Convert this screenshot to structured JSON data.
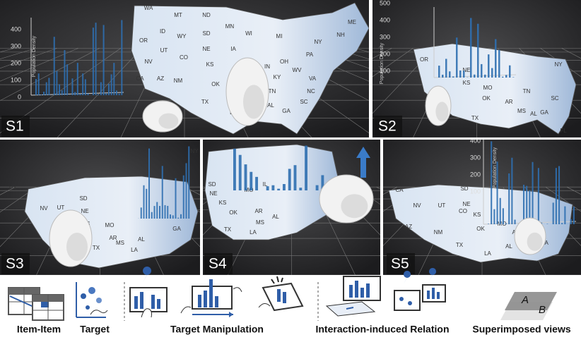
{
  "panels": [
    {
      "label": "S1",
      "axis_ticks": [
        "0",
        "100",
        "200",
        "300",
        "400"
      ],
      "axis_title": "Population Density",
      "states": [
        "WA",
        "MT",
        "ND",
        "MN",
        "OR",
        "ID",
        "WY",
        "SD",
        "WI",
        "MI",
        "NY",
        "ME",
        "NH",
        "NV",
        "UT",
        "CO",
        "NE",
        "IA",
        "IL",
        "IN",
        "OH",
        "PA",
        "CA",
        "KS",
        "MO",
        "KY",
        "WV",
        "VA",
        "AZ",
        "NM",
        "OK",
        "AR",
        "TN",
        "NC",
        "SC",
        "TX",
        "LA",
        "MS",
        "AL",
        "GA"
      ]
    },
    {
      "label": "S2",
      "axis_ticks": [
        "500",
        "400",
        "300",
        "200",
        "100"
      ],
      "axis_title": "Population Density",
      "states": [
        "OR",
        "CA",
        "NE",
        "KS",
        "MO",
        "OK",
        "AR",
        "TN",
        "TX",
        "MS",
        "AL",
        "GA",
        "SC",
        "FL",
        "NY"
      ]
    },
    {
      "label": "S3",
      "axis_ticks": [],
      "axis_title": "",
      "states": [
        "CA",
        "NV",
        "UT",
        "SD",
        "NE",
        "KS",
        "OK",
        "TX",
        "MO",
        "AR",
        "MS",
        "AL",
        "GA",
        "LA",
        "NY"
      ]
    },
    {
      "label": "S4",
      "axis_ticks": [],
      "axis_title": "",
      "states": [
        "OH",
        "SD",
        "NE",
        "KS",
        "OK",
        "TX",
        "MO",
        "IL",
        "AR",
        "MS",
        "AL",
        "LA"
      ]
    },
    {
      "label": "S5",
      "axis_ticks": [
        "400",
        "300",
        "200",
        "100"
      ],
      "axis_title": "Population Density",
      "states": [
        "CA",
        "NV",
        "UT",
        "CO",
        "AZ",
        "NM",
        "SD",
        "NE",
        "KS",
        "OK",
        "TX",
        "MO",
        "AR",
        "AL",
        "GA",
        "LA"
      ]
    }
  ],
  "legend": {
    "captions": [
      "Item-Item",
      "Target",
      "Target Manipulation",
      "Interaction-induced Relation",
      "Superimposed views"
    ],
    "letters": [
      "A",
      "B"
    ]
  }
}
